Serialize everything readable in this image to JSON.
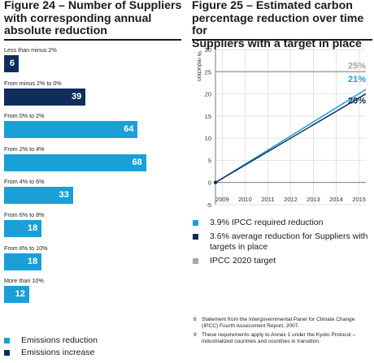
{
  "left": {
    "title": "Figure 24 – Number of Suppliers\nwith corresponding annual\nabsolute reduction",
    "legend": [
      {
        "label": "Emissions reduction",
        "color": "#1a9fd9"
      },
      {
        "label": "Emissions increase",
        "color": "#0f2d5c"
      }
    ]
  },
  "right": {
    "title": "Figure 25 – Estimated carbon\npercentage reduction over time for\nSuppliers with a target in place",
    "legend": [
      {
        "label": "3.9% IPCC required reduction",
        "color": "#1a9fd9"
      },
      {
        "label": "3.6% average reduction for Suppliers with\ntargets in place",
        "color": "#0f2d5c"
      },
      {
        "label": "IPCC 2020 target",
        "color": "#a6a6a6"
      }
    ]
  },
  "footnotes": [
    {
      "num": "8",
      "text": "Statement from the Intergovernmental Panel for Climate Change (IPCC) Fourth Assessment Report, 2007."
    },
    {
      "num": "9",
      "text": "These requirements apply to Annex 1 under the Kyoto Protocol – industrialized countries and countries in transition."
    }
  ],
  "chart_data": [
    {
      "type": "bar",
      "orientation": "horizontal",
      "categories": [
        "Less than minus 2%",
        "From minus 2% to 0%",
        "From 0% to 2%",
        "From 2% to 4%",
        "From 4% to 6%",
        "From 6% to 8%",
        "From 8% to 10%",
        "More than 10%"
      ],
      "values": [
        6,
        39,
        64,
        68,
        33,
        18,
        18,
        12
      ],
      "colors": [
        "#0f2d5c",
        "#0f2d5c",
        "#1a9fd9",
        "#1a9fd9",
        "#1a9fd9",
        "#1a9fd9",
        "#1a9fd9",
        "#1a9fd9"
      ],
      "value_labels": [
        "6",
        "39",
        "64",
        "68",
        "33",
        "18",
        "18",
        "12"
      ],
      "series": [
        {
          "name": "Emissions reduction",
          "color": "#1a9fd9"
        },
        {
          "name": "Emissions increase",
          "color": "#0f2d5c"
        }
      ],
      "xlim": [
        0,
        72
      ]
    },
    {
      "type": "line",
      "x": [
        2009,
        2010,
        2011,
        2012,
        2013,
        2014,
        2015
      ],
      "ylabel": "% reduction",
      "ylim": [
        -5,
        30
      ],
      "yticks": [
        -5,
        0,
        5,
        10,
        15,
        20,
        25,
        30
      ],
      "grid": true,
      "series": [
        {
          "name": "3.9% IPCC required reduction",
          "color": "#1a9fd9",
          "points": [
            [
              2008.7,
              0
            ],
            [
              2015.3,
              21
            ]
          ],
          "end_label": "21%"
        },
        {
          "name": "3.6% average reduction for Suppliers with targets in place",
          "color": "#0f2d5c",
          "points": [
            [
              2008.7,
              0
            ],
            [
              2015.3,
              20
            ]
          ],
          "end_label": "20%"
        },
        {
          "name": "IPCC 2020 target",
          "color": "#a6a6a6",
          "points": [
            [
              2008.7,
              25
            ],
            [
              2015.3,
              25
            ]
          ],
          "end_label": "25%"
        }
      ]
    }
  ]
}
